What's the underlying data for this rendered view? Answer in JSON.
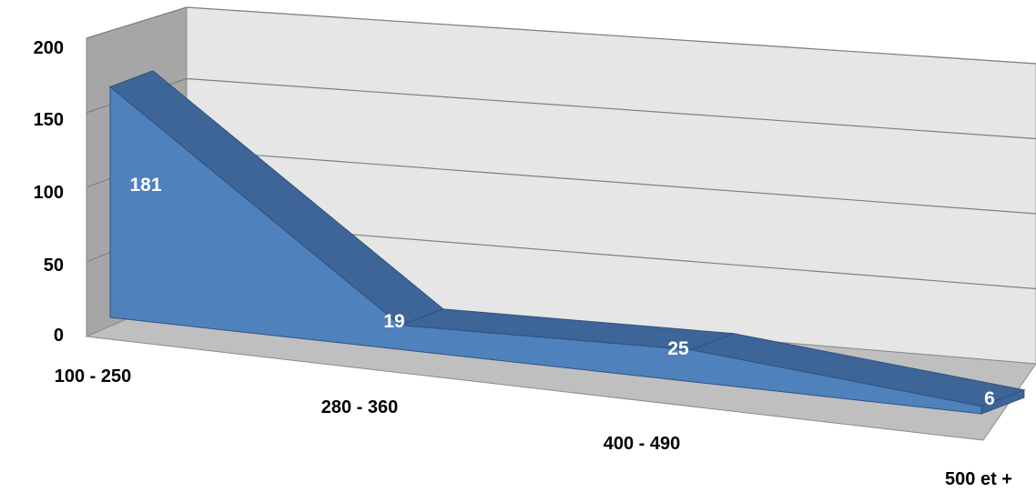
{
  "chart_data": {
    "type": "area",
    "title": "",
    "xlabel": "",
    "ylabel": "",
    "categories": [
      "100 - 250",
      "280 - 360",
      "400 - 490",
      "500 et +"
    ],
    "series": [
      {
        "values": [
          181,
          19,
          25,
          6
        ]
      }
    ],
    "ylim": [
      0,
      200
    ],
    "yticks": [
      0,
      50,
      100,
      150,
      200
    ],
    "grid": true,
    "legend": "none",
    "style": "3d",
    "colors": {
      "area_front": "#4f81bd",
      "area_top": "#3d6597",
      "area_edge": "#2f527f",
      "back_wall": "#e6e6e6",
      "side_wall": "#a6a6a6",
      "floor": "#bfbfbf",
      "grid": "#7f7f7f"
    }
  }
}
